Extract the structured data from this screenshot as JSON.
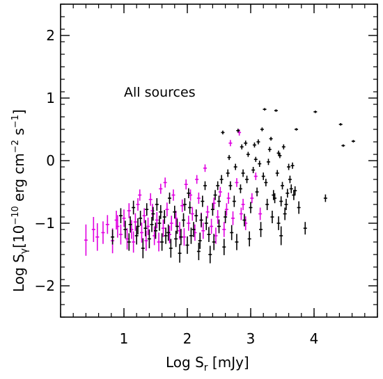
{
  "chart_data": {
    "type": "scatter",
    "annotation": "All sources",
    "xlabel": {
      "main": "Log S",
      "sub": "r",
      "rest": " [mJy]"
    },
    "ylabel": {
      "main": "Log S",
      "sub": "γ",
      "rest": "[10",
      "sup1": "−10",
      "rest2": " erg cm",
      "sup2": "−2",
      "rest3": " s",
      "sup3": "−1",
      "end": "]"
    },
    "xlim": [
      0.0,
      5.0
    ],
    "ylim": [
      -2.5,
      2.5
    ],
    "x_ticks": [
      1,
      2,
      3,
      4
    ],
    "x_tick_labels": [
      "1",
      "2",
      "3",
      "4"
    ],
    "y_ticks": [
      -2,
      -1,
      0,
      1,
      2
    ],
    "y_tick_labels": [
      "−2",
      "−1",
      "0",
      "1",
      "2"
    ],
    "x_minor_step": 0.2,
    "y_minor_step": 0.2,
    "grid": false,
    "series_colors": {
      "group_a": "#000000",
      "group_b": "#e000e0"
    },
    "series": [
      {
        "key": "group_b",
        "color": "#e000e0",
        "points": [
          {
            "x": 0.4,
            "y": -1.27,
            "err": 0.25
          },
          {
            "x": 0.52,
            "y": -1.1,
            "err": 0.2
          },
          {
            "x": 0.58,
            "y": -1.22,
            "err": 0.22
          },
          {
            "x": 0.67,
            "y": -1.15,
            "err": 0.18
          },
          {
            "x": 0.74,
            "y": -1.02,
            "err": 0.15
          },
          {
            "x": 0.82,
            "y": -1.28,
            "err": 0.2
          },
          {
            "x": 0.9,
            "y": -1.05,
            "err": 0.18
          },
          {
            "x": 0.95,
            "y": -1.18,
            "err": 0.16
          },
          {
            "x": 1.0,
            "y": -0.92,
            "err": 0.14
          },
          {
            "x": 1.05,
            "y": -1.25,
            "err": 0.17
          },
          {
            "x": 1.08,
            "y": -0.8,
            "err": 0.12
          },
          {
            "x": 1.12,
            "y": -1.1,
            "err": 0.15
          },
          {
            "x": 1.18,
            "y": -0.98,
            "err": 0.14
          },
          {
            "x": 1.22,
            "y": -0.7,
            "err": 0.1
          },
          {
            "x": 1.28,
            "y": -1.15,
            "err": 0.16
          },
          {
            "x": 1.32,
            "y": -0.88,
            "err": 0.12
          },
          {
            "x": 1.38,
            "y": -1.05,
            "err": 0.14
          },
          {
            "x": 1.42,
            "y": -0.62,
            "err": 0.1
          },
          {
            "x": 1.48,
            "y": -1.2,
            "err": 0.15
          },
          {
            "x": 1.52,
            "y": -0.95,
            "err": 0.13
          },
          {
            "x": 1.58,
            "y": -0.45,
            "err": 0.08
          },
          {
            "x": 1.62,
            "y": -1.08,
            "err": 0.14
          },
          {
            "x": 1.68,
            "y": -0.78,
            "err": 0.11
          },
          {
            "x": 1.72,
            "y": -1.18,
            "err": 0.14
          },
          {
            "x": 1.78,
            "y": -0.55,
            "err": 0.09
          },
          {
            "x": 1.82,
            "y": -0.92,
            "err": 0.12
          },
          {
            "x": 1.88,
            "y": -1.12,
            "err": 0.14
          },
          {
            "x": 1.92,
            "y": -0.72,
            "err": 0.1
          },
          {
            "x": 1.98,
            "y": -0.38,
            "err": 0.08
          },
          {
            "x": 2.02,
            "y": -1.0,
            "err": 0.12
          },
          {
            "x": 2.08,
            "y": -0.85,
            "err": 0.11
          },
          {
            "x": 2.12,
            "y": -1.15,
            "err": 0.13
          },
          {
            "x": 2.18,
            "y": -0.6,
            "err": 0.09
          },
          {
            "x": 2.22,
            "y": -0.95,
            "err": 0.12
          },
          {
            "x": 2.28,
            "y": -0.12,
            "err": 0.06
          },
          {
            "x": 2.32,
            "y": -0.82,
            "err": 0.1
          },
          {
            "x": 2.38,
            "y": -1.05,
            "err": 0.12
          },
          {
            "x": 2.42,
            "y": -0.68,
            "err": 0.09
          },
          {
            "x": 2.48,
            "y": -0.9,
            "err": 0.11
          },
          {
            "x": 2.52,
            "y": -0.5,
            "err": 0.08
          },
          {
            "x": 2.58,
            "y": -1.1,
            "err": 0.12
          },
          {
            "x": 2.62,
            "y": -0.78,
            "err": 0.1
          },
          {
            "x": 2.68,
            "y": 0.28,
            "err": 0.05
          },
          {
            "x": 2.72,
            "y": -0.92,
            "err": 0.11
          },
          {
            "x": 2.78,
            "y": -0.35,
            "err": 0.07
          },
          {
            "x": 2.82,
            "y": 0.45,
            "err": 0.05
          },
          {
            "x": 2.88,
            "y": -0.7,
            "err": 0.09
          },
          {
            "x": 2.92,
            "y": -1.0,
            "err": 0.11
          },
          {
            "x": 3.02,
            "y": -0.6,
            "err": 0.08
          },
          {
            "x": 3.08,
            "y": -0.25,
            "err": 0.06
          },
          {
            "x": 3.15,
            "y": -0.85,
            "err": 0.1
          },
          {
            "x": 0.88,
            "y": -0.95,
            "err": 0.15
          },
          {
            "x": 1.15,
            "y": -1.3,
            "err": 0.17
          },
          {
            "x": 1.35,
            "y": -1.28,
            "err": 0.16
          },
          {
            "x": 1.55,
            "y": -1.3,
            "err": 0.15
          },
          {
            "x": 1.75,
            "y": -1.0,
            "err": 0.12
          },
          {
            "x": 1.95,
            "y": -1.22,
            "err": 0.14
          },
          {
            "x": 2.05,
            "y": -0.55,
            "err": 0.09
          },
          {
            "x": 2.25,
            "y": -1.12,
            "err": 0.13
          },
          {
            "x": 2.45,
            "y": -1.2,
            "err": 0.13
          },
          {
            "x": 2.65,
            "y": -0.6,
            "err": 0.09
          },
          {
            "x": 2.85,
            "y": -0.85,
            "err": 0.1
          },
          {
            "x": 1.65,
            "y": -0.35,
            "err": 0.08
          },
          {
            "x": 1.45,
            "y": -0.8,
            "err": 0.11
          },
          {
            "x": 1.25,
            "y": -0.55,
            "err": 0.09
          },
          {
            "x": 2.15,
            "y": -0.3,
            "err": 0.07
          }
        ]
      },
      {
        "key": "group_a",
        "color": "#000000",
        "points": [
          {
            "x": 0.82,
            "y": -1.22,
            "err": 0.12
          },
          {
            "x": 0.95,
            "y": -0.88,
            "err": 0.12
          },
          {
            "x": 1.02,
            "y": -1.1,
            "err": 0.14
          },
          {
            "x": 1.1,
            "y": -1.02,
            "err": 0.13
          },
          {
            "x": 1.2,
            "y": -1.2,
            "err": 0.14
          },
          {
            "x": 1.26,
            "y": -0.92,
            "err": 0.12
          },
          {
            "x": 1.34,
            "y": -1.08,
            "err": 0.13
          },
          {
            "x": 1.4,
            "y": -1.25,
            "err": 0.15
          },
          {
            "x": 1.46,
            "y": -0.85,
            "err": 0.11
          },
          {
            "x": 1.5,
            "y": -1.12,
            "err": 0.13
          },
          {
            "x": 1.56,
            "y": -1.0,
            "err": 0.12
          },
          {
            "x": 1.6,
            "y": -1.3,
            "err": 0.14
          },
          {
            "x": 1.64,
            "y": -0.9,
            "err": 0.11
          },
          {
            "x": 1.7,
            "y": -1.15,
            "err": 0.13
          },
          {
            "x": 1.74,
            "y": -1.4,
            "err": 0.15
          },
          {
            "x": 1.8,
            "y": -0.82,
            "err": 0.1
          },
          {
            "x": 1.84,
            "y": -1.05,
            "err": 0.12
          },
          {
            "x": 1.9,
            "y": -1.22,
            "err": 0.13
          },
          {
            "x": 1.94,
            "y": -0.95,
            "err": 0.11
          },
          {
            "x": 2.0,
            "y": -1.35,
            "err": 0.14
          },
          {
            "x": 2.04,
            "y": -0.75,
            "err": 0.1
          },
          {
            "x": 2.1,
            "y": -1.1,
            "err": 0.12
          },
          {
            "x": 2.14,
            "y": -0.88,
            "err": 0.1
          },
          {
            "x": 2.2,
            "y": -1.28,
            "err": 0.13
          },
          {
            "x": 2.24,
            "y": -0.65,
            "err": 0.09
          },
          {
            "x": 2.3,
            "y": -1.0,
            "err": 0.11
          },
          {
            "x": 2.34,
            "y": -1.18,
            "err": 0.12
          },
          {
            "x": 2.4,
            "y": -0.78,
            "err": 0.1
          },
          {
            "x": 2.44,
            "y": -0.55,
            "err": 0.08
          },
          {
            "x": 2.5,
            "y": -1.05,
            "err": 0.11
          },
          {
            "x": 2.54,
            "y": -0.3,
            "err": 0.07
          },
          {
            "x": 2.56,
            "y": 0.45,
            "err": 0.03
          },
          {
            "x": 2.6,
            "y": -0.9,
            "err": 0.1
          },
          {
            "x": 2.64,
            "y": -0.2,
            "err": 0.06
          },
          {
            "x": 2.66,
            "y": 0.05,
            "err": 0.04
          },
          {
            "x": 2.7,
            "y": -1.15,
            "err": 0.12
          },
          {
            "x": 2.74,
            "y": -0.65,
            "err": 0.09
          },
          {
            "x": 2.76,
            "y": -0.1,
            "err": 0.05
          },
          {
            "x": 2.8,
            "y": 0.48,
            "err": 0.03
          },
          {
            "x": 2.84,
            "y": -0.45,
            "err": 0.07
          },
          {
            "x": 2.86,
            "y": 0.22,
            "err": 0.04
          },
          {
            "x": 2.9,
            "y": -0.95,
            "err": 0.1
          },
          {
            "x": 2.94,
            "y": -0.3,
            "err": 0.06
          },
          {
            "x": 2.96,
            "y": 0.1,
            "err": 0.04
          },
          {
            "x": 3.0,
            "y": -0.75,
            "err": 0.09
          },
          {
            "x": 3.04,
            "y": -0.15,
            "err": 0.05
          },
          {
            "x": 3.06,
            "y": 0.25,
            "err": 0.04
          },
          {
            "x": 3.1,
            "y": -0.5,
            "err": 0.07
          },
          {
            "x": 3.14,
            "y": -0.05,
            "err": 0.05
          },
          {
            "x": 3.18,
            "y": 0.5,
            "err": 0.03
          },
          {
            "x": 3.22,
            "y": 0.82,
            "err": 0.02
          },
          {
            "x": 3.24,
            "y": -0.35,
            "err": 0.06
          },
          {
            "x": 3.28,
            "y": -0.02,
            "err": 0.05
          },
          {
            "x": 3.32,
            "y": 0.35,
            "err": 0.03
          },
          {
            "x": 3.36,
            "y": -0.55,
            "err": 0.08
          },
          {
            "x": 3.4,
            "y": 0.8,
            "err": 0.02
          },
          {
            "x": 3.42,
            "y": -0.2,
            "err": 0.05
          },
          {
            "x": 3.46,
            "y": 0.08,
            "err": 0.04
          },
          {
            "x": 3.48,
            "y": -1.2,
            "err": 0.15
          },
          {
            "x": 3.5,
            "y": -0.4,
            "err": 0.06
          },
          {
            "x": 3.52,
            "y": 0.22,
            "err": 0.04
          },
          {
            "x": 3.56,
            "y": -0.7,
            "err": 0.09
          },
          {
            "x": 3.6,
            "y": -0.1,
            "err": 0.05
          },
          {
            "x": 3.64,
            "y": -0.45,
            "err": 0.07
          },
          {
            "x": 3.68,
            "y": -0.55,
            "err": 0.08
          },
          {
            "x": 3.72,
            "y": 0.5,
            "err": 0.02
          },
          {
            "x": 3.76,
            "y": -0.75,
            "err": 0.1
          },
          {
            "x": 3.86,
            "y": -1.08,
            "err": 0.1
          },
          {
            "x": 4.02,
            "y": 0.78,
            "err": 0.02
          },
          {
            "x": 4.18,
            "y": -0.6,
            "err": 0.06
          },
          {
            "x": 4.42,
            "y": 0.58,
            "err": 0.02
          },
          {
            "x": 4.46,
            "y": 0.24,
            "err": 0.02
          },
          {
            "x": 4.62,
            "y": 0.31,
            "err": 0.02
          },
          {
            "x": 1.15,
            "y": -0.75,
            "err": 0.11
          },
          {
            "x": 1.3,
            "y": -1.4,
            "err": 0.16
          },
          {
            "x": 1.52,
            "y": -0.7,
            "err": 0.1
          },
          {
            "x": 1.72,
            "y": -0.6,
            "err": 0.09
          },
          {
            "x": 1.88,
            "y": -1.48,
            "err": 0.15
          },
          {
            "x": 2.02,
            "y": -0.52,
            "err": 0.08
          },
          {
            "x": 2.18,
            "y": -1.45,
            "err": 0.14
          },
          {
            "x": 2.28,
            "y": -0.4,
            "err": 0.07
          },
          {
            "x": 2.36,
            "y": -1.5,
            "err": 0.14
          },
          {
            "x": 2.48,
            "y": -0.4,
            "err": 0.07
          },
          {
            "x": 2.58,
            "y": -1.38,
            "err": 0.13
          },
          {
            "x": 2.68,
            "y": -0.4,
            "err": 0.07
          },
          {
            "x": 2.78,
            "y": -1.3,
            "err": 0.13
          },
          {
            "x": 2.88,
            "y": -0.2,
            "err": 0.06
          },
          {
            "x": 2.98,
            "y": -1.25,
            "err": 0.12
          },
          {
            "x": 3.08,
            "y": 0.02,
            "err": 0.04
          },
          {
            "x": 3.16,
            "y": -1.1,
            "err": 0.12
          },
          {
            "x": 3.26,
            "y": -0.7,
            "err": 0.09
          },
          {
            "x": 3.34,
            "y": -0.9,
            "err": 0.1
          },
          {
            "x": 3.44,
            "y": -1.0,
            "err": 0.11
          },
          {
            "x": 3.54,
            "y": -0.85,
            "err": 0.1
          },
          {
            "x": 3.62,
            "y": -0.3,
            "err": 0.06
          },
          {
            "x": 3.66,
            "y": -0.08,
            "err": 0.05
          },
          {
            "x": 3.44,
            "y": 0.12,
            "err": 0.04
          },
          {
            "x": 3.3,
            "y": 0.18,
            "err": 0.04
          },
          {
            "x": 3.12,
            "y": 0.3,
            "err": 0.04
          },
          {
            "x": 2.92,
            "y": 0.28,
            "err": 0.04
          },
          {
            "x": 3.2,
            "y": -0.25,
            "err": 0.06
          },
          {
            "x": 3.38,
            "y": -0.6,
            "err": 0.08
          },
          {
            "x": 2.5,
            "y": -0.65,
            "err": 0.09
          },
          {
            "x": 2.42,
            "y": -1.3,
            "err": 0.13
          },
          {
            "x": 2.22,
            "y": -0.95,
            "err": 0.11
          },
          {
            "x": 2.06,
            "y": -1.2,
            "err": 0.13
          },
          {
            "x": 1.96,
            "y": -0.7,
            "err": 0.1
          },
          {
            "x": 1.82,
            "y": -1.25,
            "err": 0.13
          },
          {
            "x": 1.66,
            "y": -1.2,
            "err": 0.13
          },
          {
            "x": 1.58,
            "y": -0.82,
            "err": 0.11
          },
          {
            "x": 1.44,
            "y": -1.02,
            "err": 0.12
          },
          {
            "x": 1.36,
            "y": -0.78,
            "err": 0.1
          },
          {
            "x": 1.22,
            "y": -1.05,
            "err": 0.13
          },
          {
            "x": 1.08,
            "y": -1.3,
            "err": 0.14
          },
          {
            "x": 3.58,
            "y": -0.52,
            "err": 0.07
          },
          {
            "x": 3.48,
            "y": -0.65,
            "err": 0.08
          },
          {
            "x": 3.7,
            "y": -0.48,
            "err": 0.07
          }
        ]
      }
    ]
  }
}
